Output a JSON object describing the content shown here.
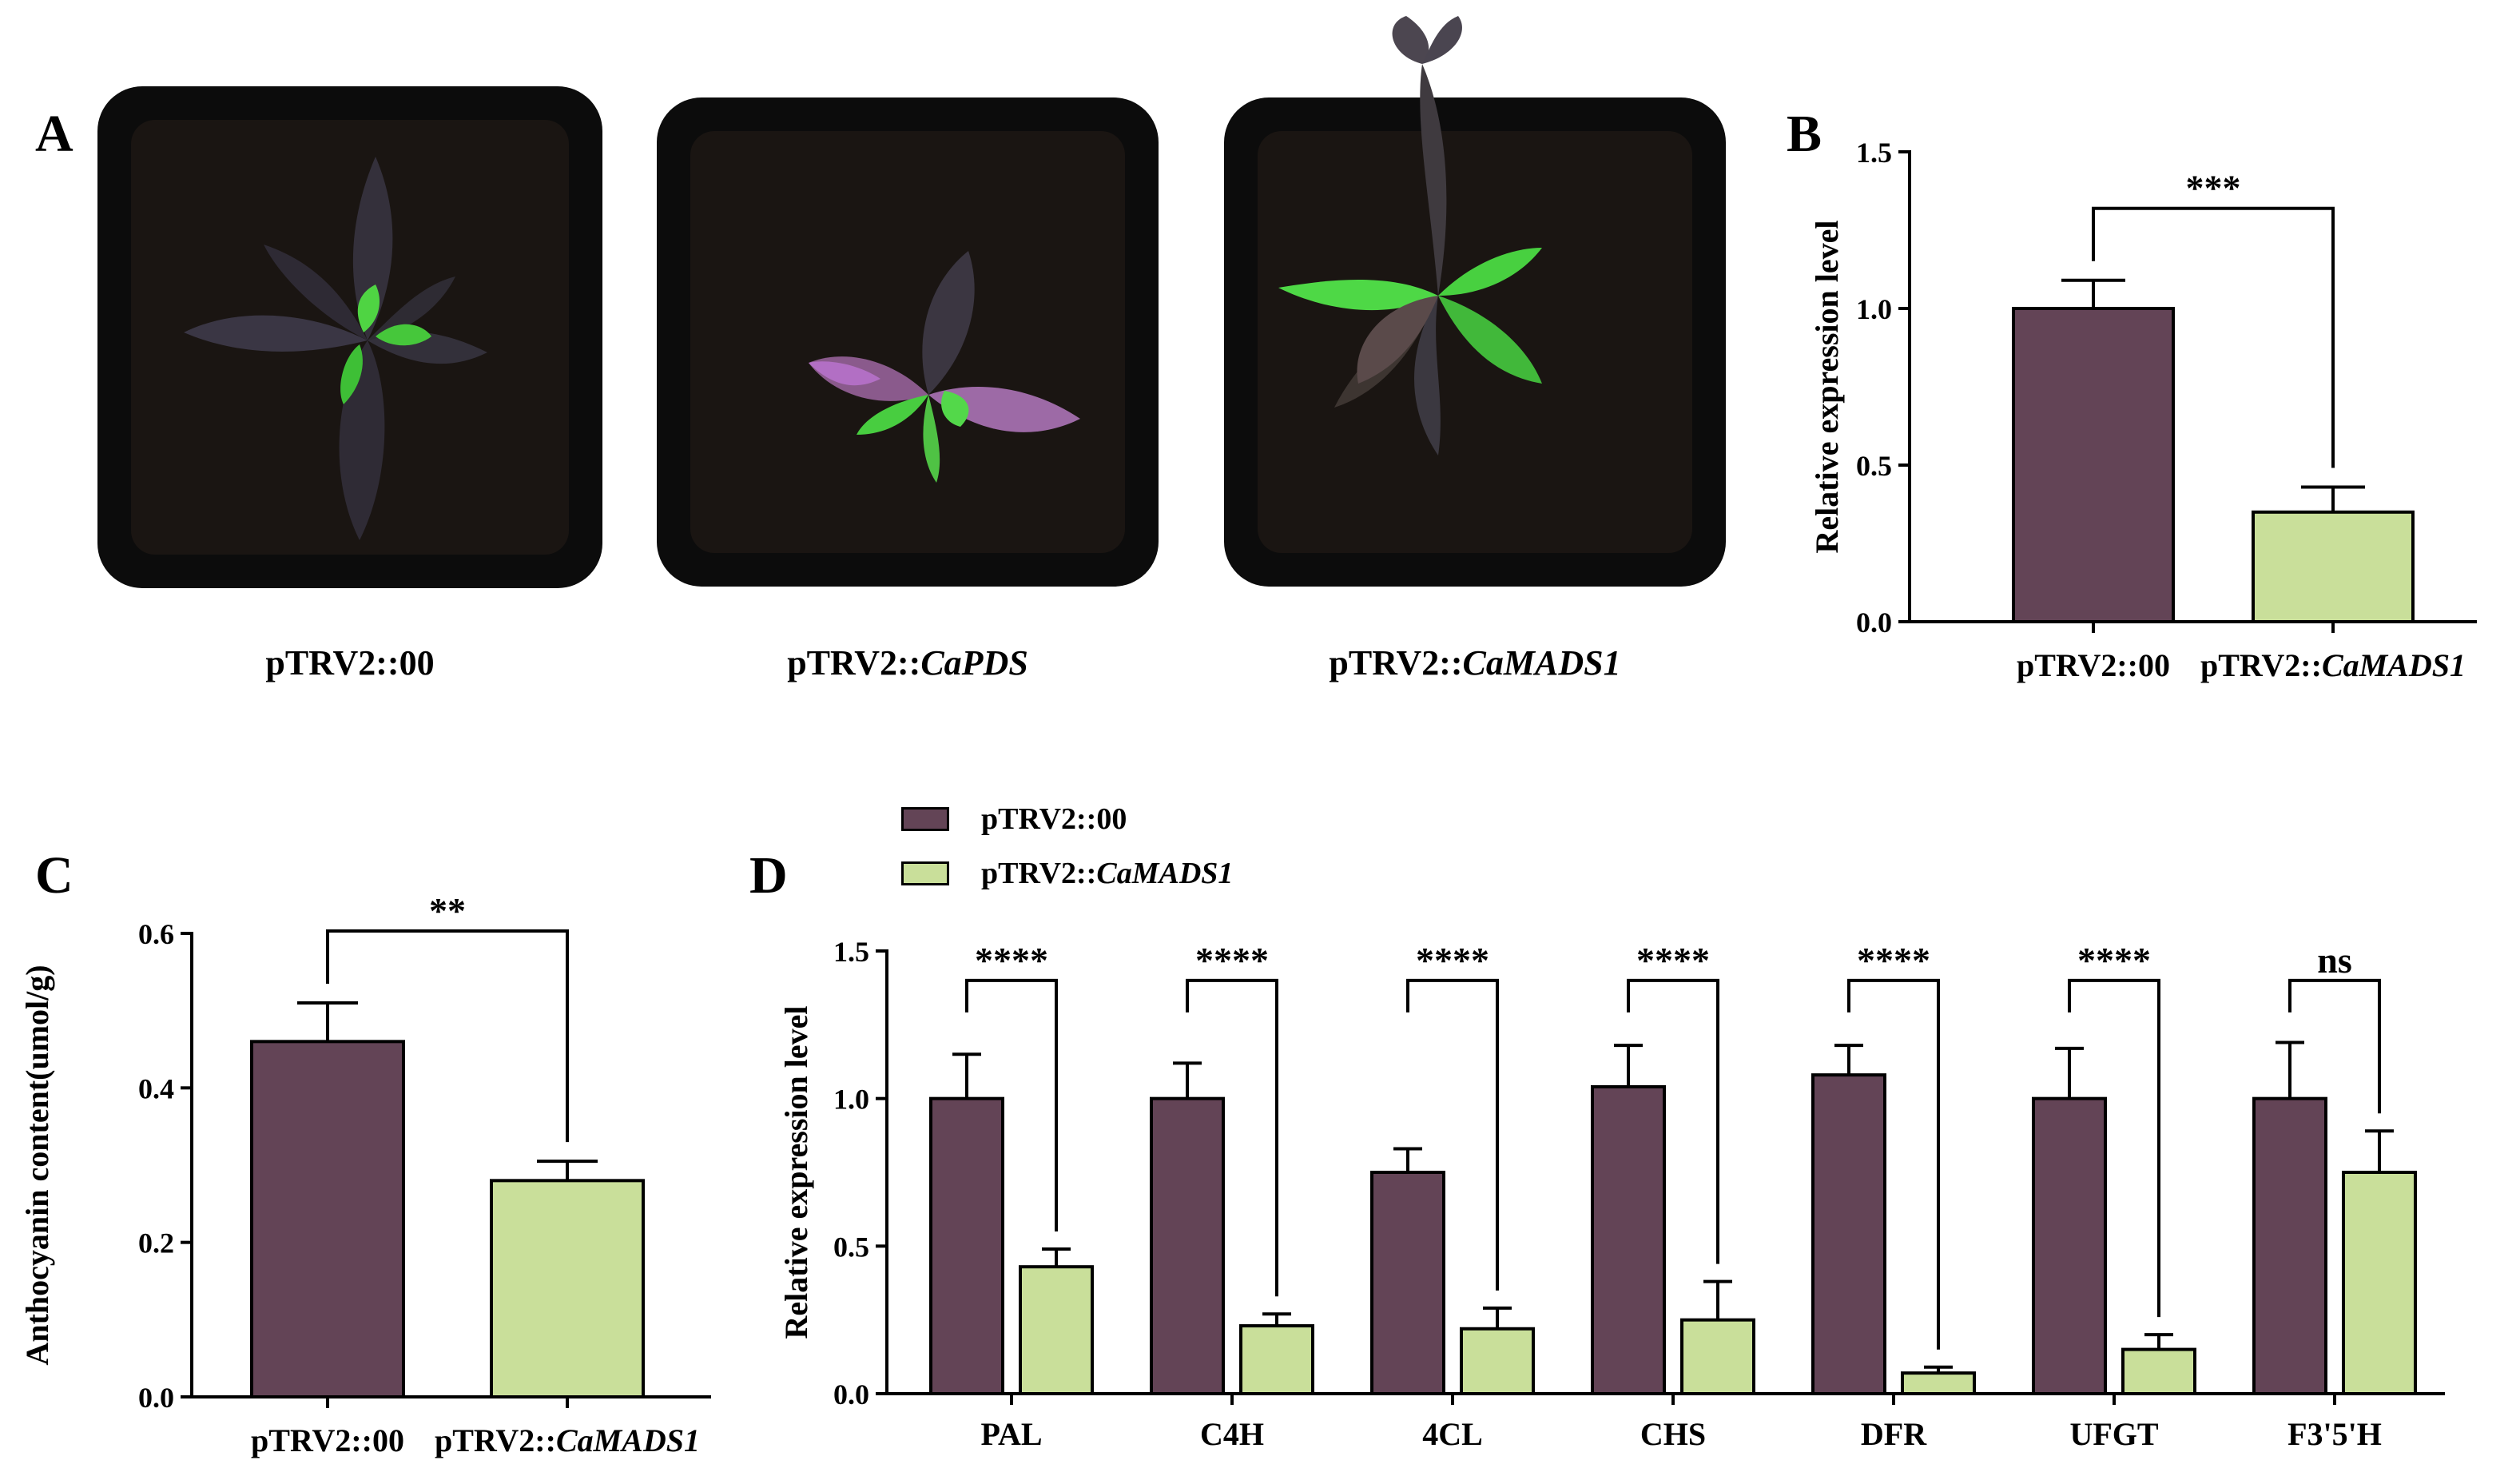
{
  "colors": {
    "control": "#634456",
    "silenced": "#c9df9a",
    "soil": "#1a1512",
    "pot": "#0c0c0c"
  },
  "panels": {
    "A": {
      "letter": "A",
      "captions": [
        {
          "prefix": "pTRV2::",
          "gene": "00",
          "italic": false
        },
        {
          "prefix": "pTRV2::",
          "gene": "CaPDS",
          "italic": true
        },
        {
          "prefix": "pTRV2::",
          "gene": "CaMADS1",
          "italic": true
        }
      ]
    },
    "B": {
      "letter": "B"
    },
    "C": {
      "letter": "C"
    },
    "D": {
      "letter": "D",
      "legend": [
        {
          "prefix": "pTRV2::",
          "gene": "00",
          "italic": false
        },
        {
          "prefix": "pTRV2::",
          "gene": "CaMADS1",
          "italic": true
        }
      ]
    }
  },
  "chart_data": [
    {
      "panel": "B",
      "type": "bar",
      "categories": [
        {
          "prefix": "pTRV2::",
          "gene": "00",
          "italic": false
        },
        {
          "prefix": "pTRV2::",
          "gene": "CaMADS1",
          "italic": true
        }
      ],
      "values": [
        1.0,
        0.35
      ],
      "errors": [
        0.09,
        0.08
      ],
      "ylabel": "Relative expression level",
      "ylim": [
        0,
        1.5
      ],
      "yticks": [
        "0.0",
        "0.5",
        "1.0",
        "1.5"
      ],
      "tick_values": [
        0,
        0.5,
        1.0,
        1.5
      ],
      "significance": "***"
    },
    {
      "panel": "C",
      "type": "bar",
      "categories": [
        {
          "prefix": "pTRV2::",
          "gene": "00",
          "italic": false
        },
        {
          "prefix": "pTRV2::",
          "gene": "CaMADS1",
          "italic": true
        }
      ],
      "values": [
        0.46,
        0.28
      ],
      "errors": [
        0.05,
        0.025
      ],
      "ylabel": "Anthocyanin content(umol/g)",
      "ylim": [
        0,
        0.6
      ],
      "yticks": [
        "0.0",
        "0.2",
        "0.4",
        "0.6"
      ],
      "tick_values": [
        0,
        0.2,
        0.4,
        0.6
      ],
      "significance": "**"
    },
    {
      "panel": "D",
      "type": "bar",
      "categories": [
        "PAL",
        "C4H",
        "4CL",
        "CHS",
        "DFR",
        "UFGT",
        "F3'5'H"
      ],
      "series": [
        {
          "name": "pTRV2::00",
          "values": [
            1.0,
            1.0,
            0.75,
            1.04,
            1.08,
            1.0,
            1.0
          ],
          "errors": [
            0.15,
            0.12,
            0.08,
            0.14,
            0.1,
            0.17,
            0.19
          ]
        },
        {
          "name": "pTRV2::CaMADS1",
          "values": [
            0.43,
            0.23,
            0.22,
            0.25,
            0.07,
            0.15,
            0.75
          ],
          "errors": [
            0.06,
            0.04,
            0.07,
            0.13,
            0.02,
            0.05,
            0.14
          ]
        }
      ],
      "significance": [
        "****",
        "****",
        "****",
        "****",
        "****",
        "****",
        "ns"
      ],
      "ylabel": "Relative expression level",
      "ylim": [
        0,
        1.5
      ],
      "yticks": [
        "0.0",
        "0.5",
        "1.0",
        "1.5"
      ],
      "tick_values": [
        0,
        0.5,
        1.0,
        1.5
      ],
      "legend": "top-left"
    }
  ]
}
